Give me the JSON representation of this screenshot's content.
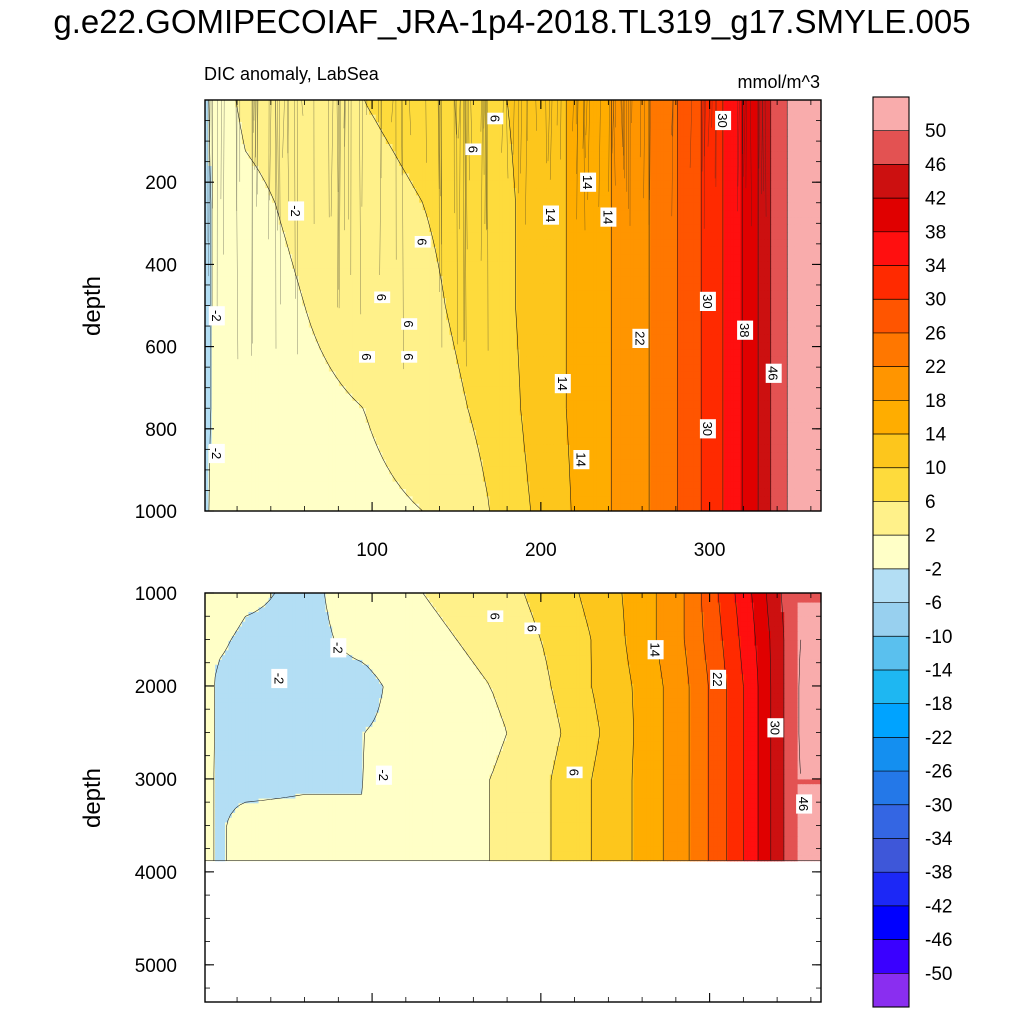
{
  "chart_data": {
    "type": "heatmap",
    "title": "g.e22.GOMIPECOIAF_JRA-1p4-2018.TL319_g17.SMYLE.005",
    "variable": "DIC anomaly, LabSea",
    "units": "mmol/m^3",
    "panels": [
      {
        "id": "upper",
        "ylabel": "depth",
        "xlim": [
          1,
          366
        ],
        "ylim": [
          1000,
          0
        ],
        "xticks": [
          100,
          200,
          300
        ],
        "xtick_labels": [
          "100",
          "200",
          "300"
        ],
        "yticks": [
          200,
          400,
          600,
          800,
          1000
        ],
        "ytick_labels": [
          "200",
          "400",
          "600",
          "800",
          "1000"
        ],
        "time_nodes": [
          1,
          8,
          25,
          60,
          95,
          130,
          170,
          200,
          230,
          260,
          285,
          305,
          325,
          340,
          352,
          366
        ],
        "depth_nodes": [
          0,
          250,
          500,
          750,
          1000
        ],
        "values": [
          [
            -3,
            0,
            3,
            4,
            6,
            7,
            9,
            12,
            16,
            21,
            27,
            33,
            40,
            48,
            52,
            52
          ],
          [
            -3,
            -1,
            1,
            3,
            5,
            6,
            8,
            12,
            16,
            21,
            27,
            33,
            40,
            48,
            52,
            52
          ],
          [
            -3,
            -1,
            0,
            2,
            4,
            5,
            8,
            12,
            16,
            21,
            27,
            33,
            40,
            48,
            52,
            52
          ],
          [
            -3,
            -1,
            0,
            1,
            2,
            4,
            7,
            12,
            16,
            21,
            27,
            33,
            40,
            48,
            52,
            52
          ],
          [
            -3,
            0,
            0,
            1,
            1,
            2,
            6,
            11,
            16,
            21,
            27,
            33,
            40,
            48,
            52,
            52
          ]
        ],
        "contour_labels": [
          {
            "value": "-2",
            "t": 55,
            "d": 270
          },
          {
            "value": "-2",
            "t": 8,
            "d": 525
          },
          {
            "value": "-2",
            "t": 8,
            "d": 860
          },
          {
            "value": "6",
            "t": 173,
            "d": 45
          },
          {
            "value": "6",
            "t": 160,
            "d": 120
          },
          {
            "value": "6",
            "t": 130,
            "d": 345
          },
          {
            "value": "6",
            "t": 106,
            "d": 480
          },
          {
            "value": "6",
            "t": 122,
            "d": 545
          },
          {
            "value": "6",
            "t": 97,
            "d": 625
          },
          {
            "value": "6",
            "t": 122,
            "d": 625
          },
          {
            "value": "14",
            "t": 228,
            "d": 200
          },
          {
            "value": "14",
            "t": 206,
            "d": 280
          },
          {
            "value": "14",
            "t": 240,
            "d": 285
          },
          {
            "value": "14",
            "t": 213,
            "d": 690
          },
          {
            "value": "14",
            "t": 224,
            "d": 875
          },
          {
            "value": "22",
            "t": 259,
            "d": 580
          },
          {
            "value": "30",
            "t": 308,
            "d": 50
          },
          {
            "value": "30",
            "t": 299,
            "d": 490
          },
          {
            "value": "30",
            "t": 299,
            "d": 800
          },
          {
            "value": "38",
            "t": 321,
            "d": 560
          },
          {
            "value": "46",
            "t": 338,
            "d": 665
          }
        ]
      },
      {
        "id": "lower",
        "ylabel": "depth",
        "xlim": [
          1,
          366
        ],
        "ylim": [
          5400,
          1000
        ],
        "yticks": [
          1000,
          2000,
          3000,
          4000,
          5000
        ],
        "ytick_labels": [
          "1000",
          "2000",
          "3000",
          "4000",
          "5000"
        ],
        "data_max_depth": 3880,
        "time_nodes": [
          1,
          8,
          25,
          60,
          95,
          130,
          170,
          200,
          230,
          260,
          285,
          305,
          325,
          340,
          352,
          366
        ],
        "depth_nodes": [
          1000,
          1500,
          2000,
          2500,
          3000,
          3500,
          3880
        ],
        "values": [
          [
            -1,
            1,
            -1,
            -3,
            0,
            2,
            4,
            7,
            11,
            16,
            22,
            30,
            38,
            45,
            50,
            50
          ],
          [
            0,
            -1,
            -3,
            -3,
            -1,
            1,
            3,
            6,
            10,
            16,
            22,
            29,
            37,
            44,
            50,
            50
          ],
          [
            2,
            -3,
            -4,
            -3,
            -3,
            0,
            2,
            5,
            10,
            15,
            21,
            28,
            36,
            44,
            50,
            52
          ],
          [
            2,
            -3,
            -4,
            -4,
            -2,
            -1,
            1,
            4,
            9,
            15,
            21,
            28,
            36,
            44,
            50,
            52
          ],
          [
            1,
            -3,
            -4,
            -3,
            -2,
            0,
            2,
            5,
            10,
            15,
            21,
            28,
            36,
            44,
            50,
            50
          ],
          [
            1,
            -3,
            0,
            0,
            -2,
            0,
            2,
            5,
            10,
            15,
            21,
            28,
            36,
            44,
            50,
            50
          ],
          [
            1,
            -3,
            0,
            0,
            -2,
            0,
            2,
            5,
            10,
            15,
            21,
            28,
            36,
            44,
            50,
            50
          ]
        ],
        "contour_labels": [
          {
            "value": "6",
            "t": 173,
            "d": 1250
          },
          {
            "value": "6",
            "t": 195,
            "d": 1380
          },
          {
            "value": "-2",
            "t": 80,
            "d": 1590
          },
          {
            "value": "-2",
            "t": 45,
            "d": 1920
          },
          {
            "value": "-2",
            "t": 107,
            "d": 2960
          },
          {
            "value": "14",
            "t": 268,
            "d": 1610
          },
          {
            "value": "22",
            "t": 305,
            "d": 1930
          },
          {
            "value": "30",
            "t": 339,
            "d": 2450
          },
          {
            "value": "6",
            "t": 220,
            "d": 2930
          },
          {
            "value": "46",
            "t": 356,
            "d": 3270
          }
        ]
      }
    ],
    "colorbar": {
      "levels": [
        "50",
        "46",
        "42",
        "38",
        "34",
        "30",
        "26",
        "22",
        "18",
        "14",
        "10",
        "6",
        "2",
        "-2",
        "-6",
        "-10",
        "-14",
        "-18",
        "-22",
        "-26",
        "-30",
        "-34",
        "-38",
        "-42",
        "-46",
        "-50"
      ],
      "colors": [
        "#f9acac",
        "#e35252",
        "#cc1010",
        "#e00000",
        "#ff0f0f",
        "#ff2a00",
        "#ff5500",
        "#ff7700",
        "#ff9500",
        "#ffad00",
        "#fdc61c",
        "#fedb3c",
        "#fff18a",
        "#ffffc7",
        "#b3def4",
        "#98d0ef",
        "#5ac0ee",
        "#1eb7f2",
        "#00a3ff",
        "#148ff0",
        "#2478e8",
        "#3466e3",
        "#3e57d9",
        "#1c28f6",
        "#0000ff",
        "#3a00ff",
        "#8a2ef0"
      ]
    }
  }
}
